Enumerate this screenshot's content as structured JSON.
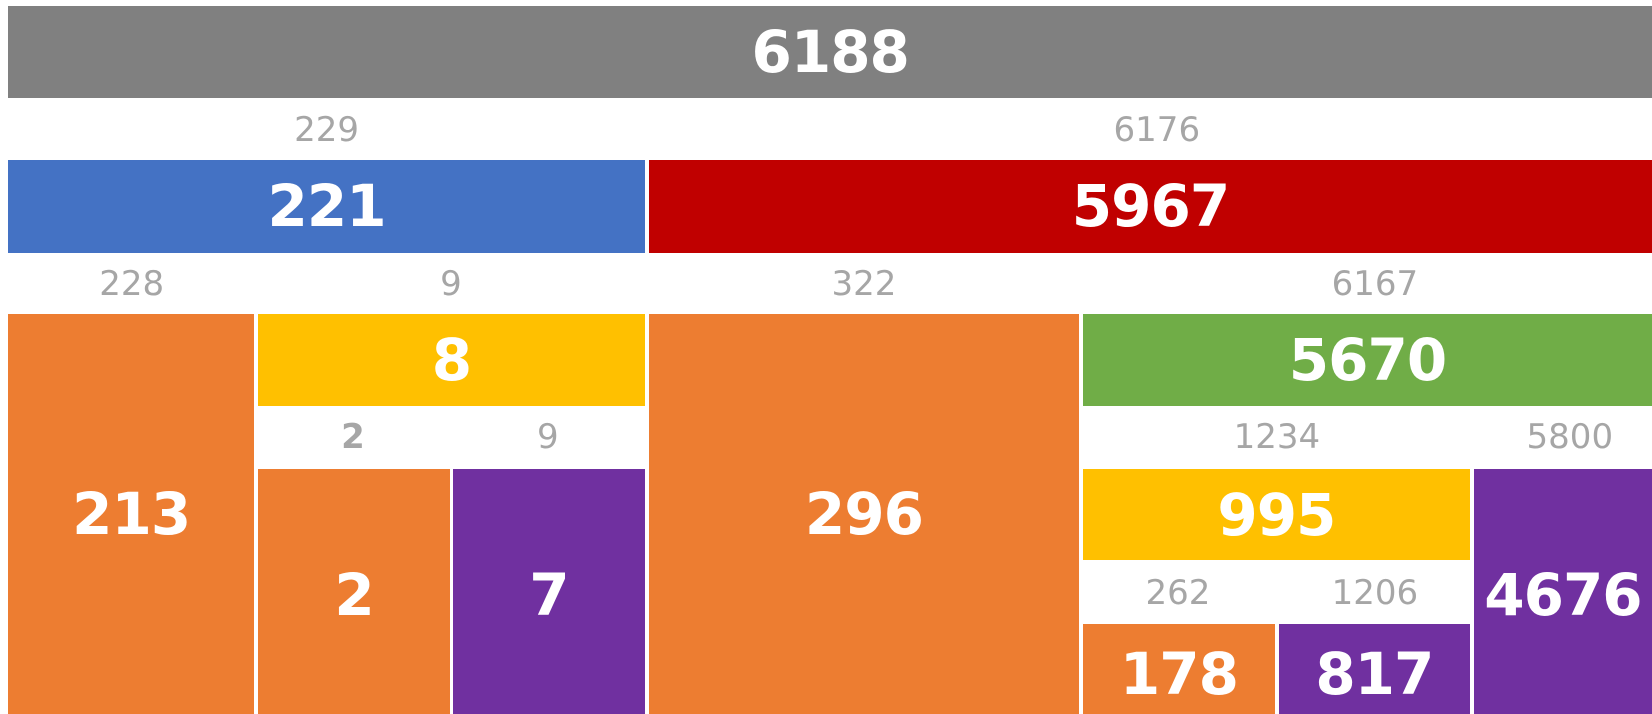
{
  "nodes": [
    {
      "value": 6188,
      "color": "#808080"
    },
    {
      "value": 221,
      "color": "#4472c4"
    },
    {
      "value": 5967,
      "color": "#c00000"
    },
    {
      "value": 213,
      "color": "#ed7d31"
    },
    {
      "value": 8,
      "color": "#ffc000"
    },
    {
      "value": 296,
      "color": "#ed7d31"
    },
    {
      "value": 5670,
      "color": "#70ad47"
    },
    {
      "value": 2,
      "color": "#ed7d31"
    },
    {
      "value": 7,
      "color": "#7030a0"
    },
    {
      "value": 995,
      "color": "#ffc000"
    },
    {
      "value": 4676,
      "color": "#7030a0"
    },
    {
      "value": 178,
      "color": "#ed7d31"
    },
    {
      "value": 817,
      "color": "#7030a0"
    }
  ],
  "labels": [
    {
      "text": 229
    },
    {
      "text": 6176
    },
    {
      "text": 228
    },
    {
      "text": 9
    },
    {
      "text": 322
    },
    {
      "text": 6167
    },
    {
      "text": 2,
      "bold": true
    },
    {
      "text": 9
    },
    {
      "text": 1234
    },
    {
      "text": 5800
    },
    {
      "text": 262
    },
    {
      "text": 1206
    }
  ]
}
